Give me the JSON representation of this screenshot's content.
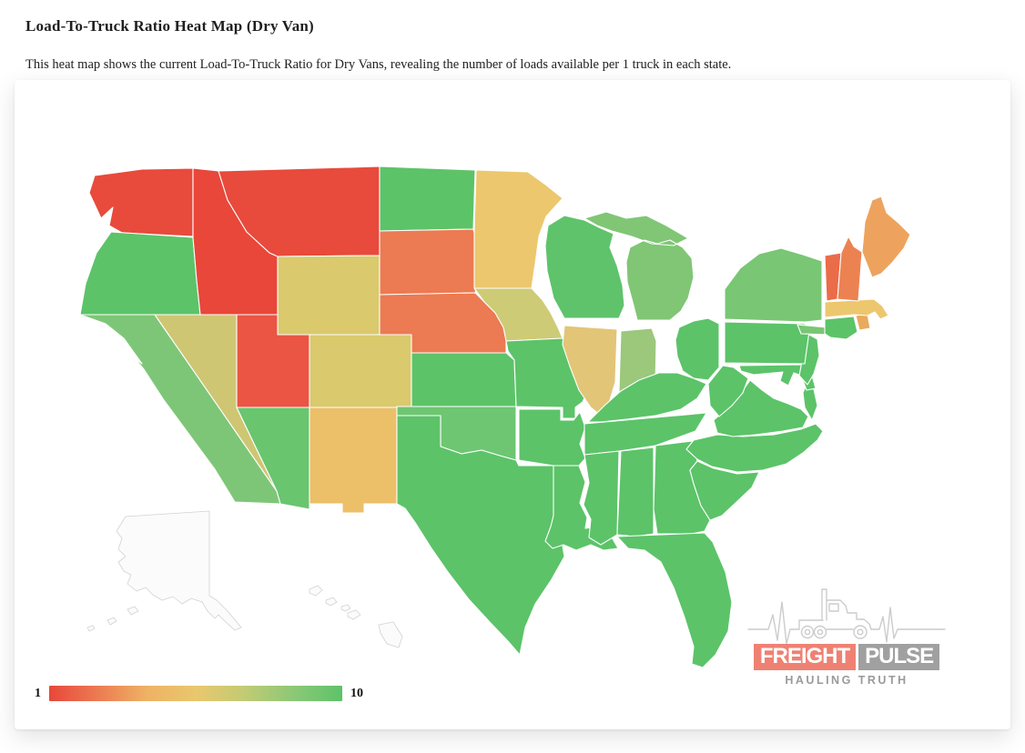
{
  "page": {
    "title": "Load-To-Truck Ratio Heat Map (Dry Van)",
    "subtitle": "This heat map shows the current Load-To-Truck Ratio for Dry Vans, revealing the number of loads available per 1 truck in each state."
  },
  "legend": {
    "min_label": "1",
    "max_label": "10",
    "gradient_stops": [
      "#e8473b",
      "#ec7b52",
      "#eeb264",
      "#e9c76e",
      "#c2cb74",
      "#8cc877",
      "#5cc369"
    ]
  },
  "logo": {
    "word_left": "FREIGHT",
    "word_right": "PULSE",
    "tagline": "HAULING TRUTH",
    "freight_bg": "#ef8173",
    "pulse_bg": "#a0a0a0",
    "line_color": "#cccccc"
  },
  "map": {
    "border_color": "#ffffff",
    "no_data_color": "#fbfbfb",
    "no_data_border": "#d2d2d2",
    "states": [
      {
        "id": "WA",
        "name": "Washington",
        "color": "#e84a3c"
      },
      {
        "id": "OR",
        "name": "Oregon",
        "color": "#5cc369"
      },
      {
        "id": "CA",
        "name": "California",
        "color": "#7ec677"
      },
      {
        "id": "NV",
        "name": "Nevada",
        "color": "#cfc673"
      },
      {
        "id": "ID",
        "name": "Idaho",
        "color": "#e8473a"
      },
      {
        "id": "MT",
        "name": "Montana",
        "color": "#e84a3c"
      },
      {
        "id": "WY",
        "name": "Wyoming",
        "color": "#dac96d"
      },
      {
        "id": "UT",
        "name": "Utah",
        "color": "#ea5544"
      },
      {
        "id": "CO",
        "name": "Colorado",
        "color": "#dac96d"
      },
      {
        "id": "AZ",
        "name": "Arizona",
        "color": "#6ac56f"
      },
      {
        "id": "NM",
        "name": "New Mexico",
        "color": "#ecbf69"
      },
      {
        "id": "ND",
        "name": "North Dakota",
        "color": "#5cc369"
      },
      {
        "id": "SD",
        "name": "South Dakota",
        "color": "#ec7a52"
      },
      {
        "id": "NE",
        "name": "Nebraska",
        "color": "#ec7a52"
      },
      {
        "id": "KS",
        "name": "Kansas",
        "color": "#5cc369"
      },
      {
        "id": "OK",
        "name": "Oklahoma",
        "color": "#6ec672"
      },
      {
        "id": "TX",
        "name": "Texas",
        "color": "#5cc369"
      },
      {
        "id": "MN",
        "name": "Minnesota",
        "color": "#ecc76e"
      },
      {
        "id": "IA",
        "name": "Iowa",
        "color": "#cdcb75"
      },
      {
        "id": "MO",
        "name": "Missouri",
        "color": "#5cc369"
      },
      {
        "id": "AR",
        "name": "Arkansas",
        "color": "#5cc369"
      },
      {
        "id": "LA",
        "name": "Louisiana",
        "color": "#5cc369"
      },
      {
        "id": "WI",
        "name": "Wisconsin",
        "color": "#5fc36b"
      },
      {
        "id": "IL",
        "name": "Illinois",
        "color": "#e3c577"
      },
      {
        "id": "IN",
        "name": "Indiana",
        "color": "#9bc87b"
      },
      {
        "id": "MI",
        "name": "Michigan",
        "color": "#80c675"
      },
      {
        "id": "OH",
        "name": "Ohio",
        "color": "#5cc369"
      },
      {
        "id": "KY",
        "name": "Kentucky",
        "color": "#5cc369"
      },
      {
        "id": "TN",
        "name": "Tennessee",
        "color": "#5cc369"
      },
      {
        "id": "MS",
        "name": "Mississippi",
        "color": "#5cc369"
      },
      {
        "id": "AL",
        "name": "Alabama",
        "color": "#5cc369"
      },
      {
        "id": "GA",
        "name": "Georgia",
        "color": "#5cc369"
      },
      {
        "id": "FL",
        "name": "Florida",
        "color": "#5cc369"
      },
      {
        "id": "SC",
        "name": "South Carolina",
        "color": "#5cc369"
      },
      {
        "id": "NC",
        "name": "North Carolina",
        "color": "#5cc369"
      },
      {
        "id": "VA",
        "name": "Virginia",
        "color": "#5cc369"
      },
      {
        "id": "WV",
        "name": "West Virginia",
        "color": "#5cc369"
      },
      {
        "id": "MD",
        "name": "Maryland",
        "color": "#5cc369"
      },
      {
        "id": "DE",
        "name": "Delaware",
        "color": "#5cc369"
      },
      {
        "id": "NJ",
        "name": "New Jersey",
        "color": "#5cc369"
      },
      {
        "id": "PA",
        "name": "Pennsylvania",
        "color": "#5cc369"
      },
      {
        "id": "NY",
        "name": "New York",
        "color": "#79c674"
      },
      {
        "id": "CT",
        "name": "Connecticut",
        "color": "#5cc369"
      },
      {
        "id": "RI",
        "name": "Rhode Island",
        "color": "#e8aa5e"
      },
      {
        "id": "MA",
        "name": "Massachusetts",
        "color": "#ecc76e"
      },
      {
        "id": "VT",
        "name": "Vermont",
        "color": "#eb6c48"
      },
      {
        "id": "NH",
        "name": "New Hampshire",
        "color": "#ec8252"
      },
      {
        "id": "ME",
        "name": "Maine",
        "color": "#eda35d"
      },
      {
        "id": "AK",
        "name": "Alaska",
        "color": "#fbfbfb"
      },
      {
        "id": "HI",
        "name": "Hawaii",
        "color": "#fbfbfb"
      }
    ]
  }
}
